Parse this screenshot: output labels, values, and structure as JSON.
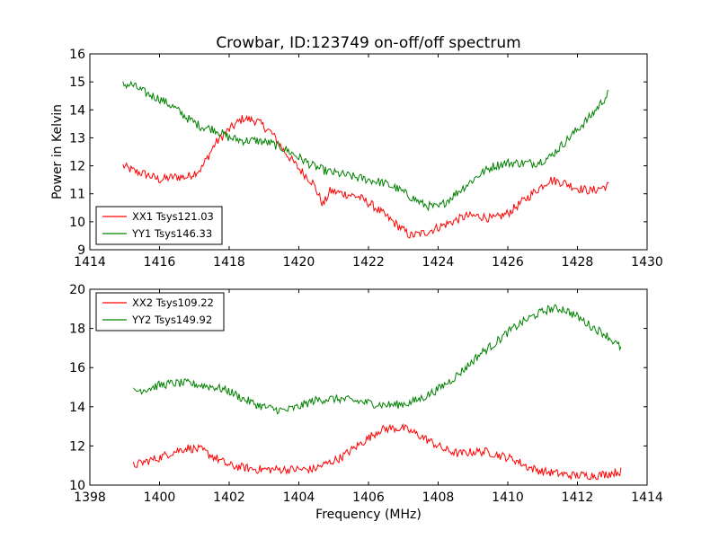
{
  "figure": {
    "title": "Crowbar, ID:123749 on-off/off spectrum",
    "ylabel": "Power in Kelvin",
    "xlabel": "Frequency (MHz)"
  },
  "colors": {
    "red": "#ff0000",
    "green": "#008000",
    "axes": "#000000",
    "background": "#ffffff"
  },
  "chart_data": [
    {
      "type": "line",
      "title": "Crowbar, ID:123749 on-off/off spectrum",
      "xlabel": "",
      "ylabel": "Power in Kelvin",
      "xlim": [
        1414,
        1430
      ],
      "ylim": [
        9,
        16
      ],
      "xticks": [
        1414,
        1416,
        1418,
        1420,
        1422,
        1424,
        1426,
        1428,
        1430
      ],
      "yticks": [
        9,
        10,
        11,
        12,
        13,
        14,
        15,
        16
      ],
      "grid": false,
      "legend_position": "lower-left",
      "series": [
        {
          "name": "XX1 Tsys121.03",
          "color": "#ff0000",
          "x": [
            1414.95,
            1415.1,
            1415.3,
            1415.6,
            1416.0,
            1416.4,
            1416.8,
            1417.2,
            1417.6,
            1418.0,
            1418.4,
            1418.8,
            1419.2,
            1419.6,
            1420.0,
            1420.4,
            1420.7,
            1420.9,
            1421.3,
            1421.7,
            1422.1,
            1422.5,
            1422.9,
            1423.2,
            1423.6,
            1424.0,
            1424.4,
            1424.8,
            1425.2,
            1425.6,
            1426.0,
            1426.4,
            1426.8,
            1427.2,
            1427.6,
            1428.0,
            1428.4,
            1428.9
          ],
          "y": [
            12.0,
            11.9,
            11.8,
            11.7,
            11.5,
            11.6,
            11.6,
            11.9,
            12.8,
            13.3,
            13.7,
            13.6,
            13.2,
            12.5,
            11.9,
            11.4,
            10.6,
            11.1,
            11.0,
            10.9,
            10.6,
            10.2,
            9.8,
            9.5,
            9.6,
            9.8,
            10.0,
            10.2,
            10.2,
            10.1,
            10.3,
            10.7,
            11.1,
            11.5,
            11.4,
            11.2,
            11.1,
            11.3
          ]
        },
        {
          "name": "YY1 Tsys146.33",
          "color": "#008000",
          "x": [
            1414.95,
            1415.2,
            1415.6,
            1416.0,
            1416.4,
            1416.8,
            1417.2,
            1417.6,
            1418.0,
            1418.4,
            1418.8,
            1419.2,
            1419.6,
            1420.0,
            1420.4,
            1420.8,
            1421.2,
            1421.6,
            1422.0,
            1422.4,
            1422.8,
            1423.2,
            1423.6,
            1424.0,
            1424.4,
            1424.8,
            1425.2,
            1425.6,
            1426.0,
            1426.4,
            1426.8,
            1427.2,
            1427.6,
            1428.0,
            1428.4,
            1428.9
          ],
          "y": [
            14.9,
            14.9,
            14.6,
            14.4,
            14.1,
            13.7,
            13.4,
            13.3,
            13.0,
            12.9,
            12.9,
            12.8,
            12.6,
            12.3,
            12.0,
            11.8,
            11.7,
            11.6,
            11.5,
            11.4,
            11.2,
            10.9,
            10.6,
            10.5,
            10.9,
            11.3,
            11.7,
            12.0,
            12.1,
            12.1,
            12.1,
            12.3,
            12.8,
            13.3,
            13.8,
            14.6
          ]
        }
      ]
    },
    {
      "type": "line",
      "title": "",
      "xlabel": "Frequency (MHz)",
      "ylabel": "",
      "xlim": [
        1398,
        1414
      ],
      "ylim": [
        10,
        20
      ],
      "xticks": [
        1398,
        1400,
        1402,
        1404,
        1406,
        1408,
        1410,
        1412,
        1414
      ],
      "yticks": [
        10,
        12,
        14,
        16,
        18,
        20
      ],
      "grid": false,
      "legend_position": "top-left",
      "series": [
        {
          "name": "XX2 Tsys109.22",
          "color": "#ff0000",
          "x": [
            1399.25,
            1399.6,
            1400.0,
            1400.4,
            1400.8,
            1401.2,
            1401.6,
            1402.0,
            1402.4,
            1402.8,
            1403.2,
            1403.6,
            1404.0,
            1404.4,
            1404.8,
            1405.2,
            1405.6,
            1406.0,
            1406.3,
            1406.6,
            1407.0,
            1407.4,
            1407.8,
            1408.2,
            1408.6,
            1409.0,
            1409.4,
            1409.8,
            1410.2,
            1410.6,
            1411.0,
            1411.4,
            1411.8,
            1412.2,
            1412.6,
            1413.25
          ],
          "y": [
            11.0,
            11.2,
            11.4,
            11.7,
            11.9,
            11.8,
            11.4,
            11.0,
            10.9,
            10.8,
            10.8,
            10.8,
            10.8,
            10.8,
            11.1,
            11.4,
            11.9,
            12.4,
            12.8,
            12.9,
            12.9,
            12.6,
            12.2,
            11.8,
            11.6,
            11.7,
            11.7,
            11.5,
            11.3,
            10.9,
            10.7,
            10.6,
            10.5,
            10.5,
            10.5,
            10.7
          ]
        },
        {
          "name": "YY2 Tsys149.92",
          "color": "#008000",
          "x": [
            1399.25,
            1399.6,
            1400.0,
            1400.4,
            1400.8,
            1401.2,
            1401.6,
            1402.0,
            1402.4,
            1402.8,
            1403.2,
            1403.6,
            1404.0,
            1404.4,
            1404.8,
            1405.2,
            1405.6,
            1406.0,
            1406.4,
            1406.8,
            1407.2,
            1407.6,
            1408.0,
            1408.4,
            1408.8,
            1409.2,
            1409.6,
            1410.0,
            1410.4,
            1410.8,
            1411.2,
            1411.6,
            1412.0,
            1412.4,
            1412.8,
            1413.25
          ],
          "y": [
            14.8,
            14.9,
            15.1,
            15.2,
            15.2,
            15.1,
            15.0,
            14.8,
            14.4,
            14.1,
            13.9,
            13.8,
            14.0,
            14.3,
            14.4,
            14.4,
            14.3,
            14.2,
            14.1,
            14.1,
            14.2,
            14.5,
            14.9,
            15.4,
            16.0,
            16.7,
            17.2,
            17.8,
            18.3,
            18.7,
            19.0,
            19.0,
            18.6,
            18.1,
            17.7,
            17.0
          ]
        }
      ]
    }
  ]
}
